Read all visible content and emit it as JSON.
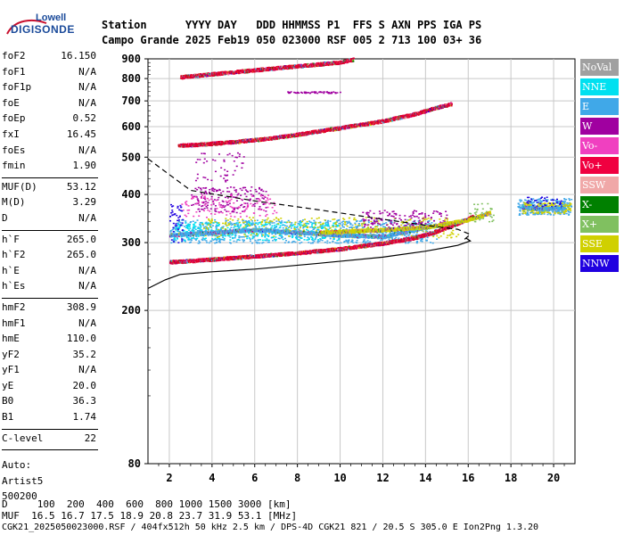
{
  "logo": {
    "top": "Lowell",
    "main": "DIGISONDE"
  },
  "header": {
    "row1": "Station      YYYY DAY   DDD HHMMSS P1  FFS S AXN PPS IGA PS",
    "row2": "Campo Grande 2025 Feb19 050 023000 RSF 005 2 713 100 03+ 36"
  },
  "params": [
    [
      [
        "foF2",
        "16.150"
      ],
      [
        "foF1",
        "N/A"
      ],
      [
        "foF1p",
        "N/A"
      ],
      [
        "foE",
        "N/A"
      ],
      [
        "foEp",
        "0.52"
      ],
      [
        "fxI",
        "16.45"
      ],
      [
        "foEs",
        "N/A"
      ],
      [
        "fmin",
        "1.90"
      ]
    ],
    [
      [
        "MUF(D)",
        "53.12"
      ],
      [
        "M(D)",
        "3.29"
      ],
      [
        "D",
        "N/A"
      ]
    ],
    [
      [
        "h`F",
        "265.0"
      ],
      [
        "h`F2",
        "265.0"
      ],
      [
        "h`E",
        "N/A"
      ],
      [
        "h`Es",
        "N/A"
      ]
    ],
    [
      [
        "hmF2",
        "308.9"
      ],
      [
        "hmF1",
        "N/A"
      ],
      [
        "hmE",
        "110.0"
      ],
      [
        "yF2",
        "35.2"
      ],
      [
        "yF1",
        "N/A"
      ],
      [
        "yE",
        "20.0"
      ],
      [
        "B0",
        "36.3"
      ],
      [
        "B1",
        "1.74"
      ]
    ],
    [
      [
        "C-level",
        "22"
      ]
    ]
  ],
  "auto": {
    "label": "Auto:",
    "name": "Artist5",
    "code": "500200"
  },
  "legend": [
    {
      "label": "NoVal",
      "color": "#a0a0a0"
    },
    {
      "label": "NNE",
      "color": "#00e0f0"
    },
    {
      "label": "E",
      "color": "#40a8e8"
    },
    {
      "label": "W",
      "color": "#a000a0"
    },
    {
      "label": "Vo-",
      "color": "#f040c0"
    },
    {
      "label": "Vo+",
      "color": "#f00040"
    },
    {
      "label": "SSW",
      "color": "#f0a8a8"
    },
    {
      "label": "X-",
      "color": "#008000"
    },
    {
      "label": "X+",
      "color": "#80c060"
    },
    {
      "label": "SSE",
      "color": "#d0d000"
    },
    {
      "label": "NNW",
      "color": "#2000e0"
    }
  ],
  "footer": {
    "line1": "D     100  200  400  600  800 1000 1500 3000 [km]",
    "line2": "MUF  16.5 16.7 17.5 18.9 20.8 23.7 31.9 53.1 [MHz]",
    "line3": "CGK21_2025050023000.RSF / 404fx512h 50 kHz 2.5 km / DPS-4D CGK21 821 / 20.5 S 305.0 E Ion2Png 1.3.20"
  },
  "chart_data": {
    "type": "scatter",
    "title": "",
    "xlabel": "",
    "ylabel": "",
    "xlim": [
      1,
      21
    ],
    "ylim": [
      80,
      900
    ],
    "yscale": "log",
    "grid": true,
    "legend_position": "right",
    "x_ticks": [
      2,
      4,
      6,
      8,
      10,
      12,
      14,
      16,
      18,
      20
    ],
    "y_ticks": [
      80,
      200,
      300,
      400,
      500,
      600,
      700,
      800,
      900
    ],
    "traces": [
      {
        "mode": "O-trace F",
        "color": "#e00030",
        "x": [
          2.0,
          3.0,
          5.0,
          8.0,
          10.0,
          12.0,
          13.5,
          14.5,
          15.5,
          16.2
        ],
        "y": [
          268,
          270,
          275,
          283,
          290,
          300,
          310,
          322,
          338,
          352
        ]
      },
      {
        "mode": "O-trace 2F",
        "color": "#e00030",
        "x": [
          2.4,
          3.5,
          5.0,
          6.5,
          8.0,
          10.0,
          12.0,
          13.5,
          14.5,
          15.2
        ],
        "y": [
          538,
          542,
          550,
          560,
          575,
          598,
          623,
          650,
          675,
          690
        ]
      },
      {
        "mode": "O-trace 3F",
        "color": "#e00030",
        "x": [
          2.5,
          4.0,
          6.0,
          8.0,
          10.0,
          10.6
        ],
        "y": [
          810,
          825,
          845,
          865,
          885,
          900
        ]
      },
      {
        "mode": "Spread F",
        "color": "#40a8e8",
        "x": [
          2.0,
          4.0,
          6.0,
          8.0,
          10.0,
          12.0,
          14.0
        ],
        "y": [
          315,
          320,
          325,
          320,
          315,
          312,
          330
        ]
      },
      {
        "mode": "X-trace",
        "color": "#d0d000",
        "x": [
          9.0,
          12.0,
          14.0,
          16.0,
          17.0
        ],
        "y": [
          320,
          325,
          330,
          345,
          360
        ]
      },
      {
        "mode": "Spread 19-21",
        "color": "#40a8e8",
        "x": [
          18.5,
          19.5,
          20.5
        ],
        "y": [
          372,
          368,
          370
        ]
      }
    ],
    "profile_lines": [
      {
        "name": "dashed",
        "x": [
          1.0,
          3.0,
          6.0,
          9.0,
          12.0,
          14.5,
          15.5,
          16.1,
          15.8
        ],
        "y": [
          495,
          410,
          385,
          365,
          345,
          330,
          325,
          315,
          305
        ]
      },
      {
        "name": "solid",
        "x": [
          1.0,
          1.8,
          2.5,
          4.0,
          6.0,
          9.0,
          12.0,
          14.0,
          15.5,
          16.1,
          15.9
        ],
        "y": [
          228,
          240,
          248,
          252,
          256,
          265,
          275,
          285,
          295,
          303,
          308
        ]
      }
    ]
  }
}
